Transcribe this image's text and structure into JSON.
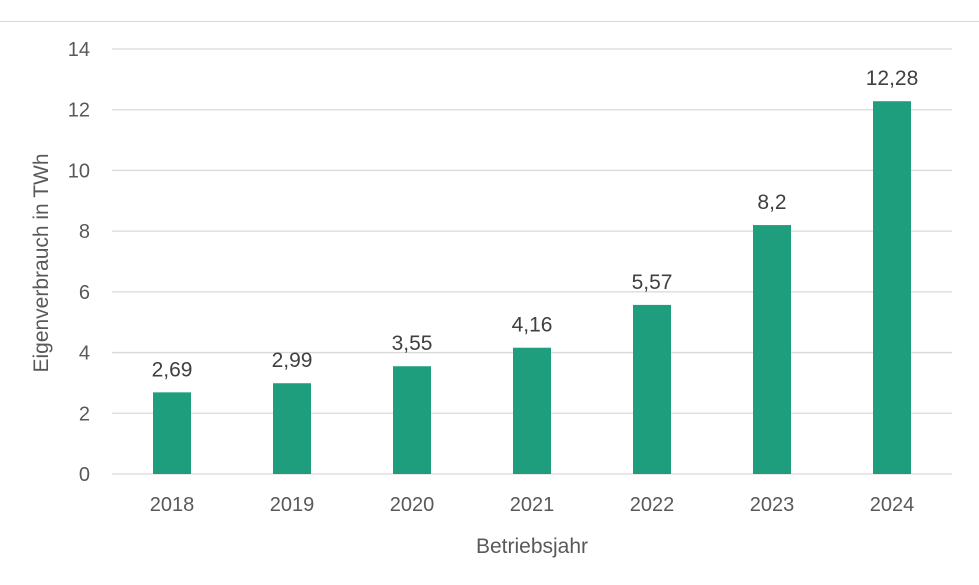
{
  "chart_data": {
    "type": "bar",
    "categories": [
      "2018",
      "2019",
      "2020",
      "2021",
      "2022",
      "2023",
      "2024"
    ],
    "values": [
      2.69,
      2.99,
      3.55,
      4.16,
      5.57,
      8.2,
      12.28
    ],
    "data_labels": [
      "2,69",
      "2,99",
      "3,55",
      "4,16",
      "5,57",
      "8,2",
      "12,28"
    ],
    "xlabel": "Betriebsjahr",
    "ylabel": "Eigenverbrauch in TWh",
    "ylim": [
      0,
      14
    ],
    "yticks": [
      "0",
      "2",
      "4",
      "6",
      "8",
      "10",
      "12",
      "14"
    ],
    "grid": true,
    "bar_color": "#1f9e7d",
    "grid_color": "#d9d9d9"
  }
}
